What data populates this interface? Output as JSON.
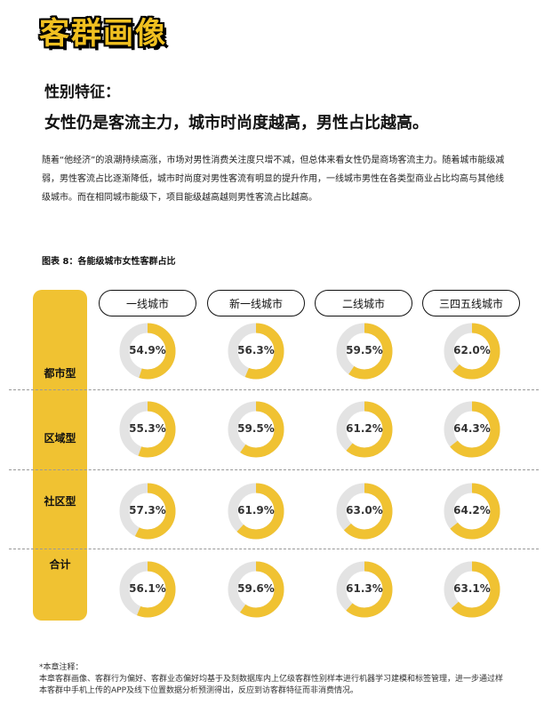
{
  "header": {
    "title": "客群画像"
  },
  "section": {
    "label": "性别特征：",
    "headline": "女性仍是客流主力，城市时尚度越高，男性占比越高。",
    "body": "随着“他经济”的浪潮持续高涨，市场对男性消费关注度只增不减，但总体来看女性仍是商场客流主力。随着城市能级减弱，男性客流占比逐渐降低，城市时尚度对男性客流有明显的提升作用，一线城市男性在各类型商业占比均高与其他线级城市。而在相同城市能级下，项目能级越高越则男性客流占比越高。",
    "figure_caption": "图表 8：各能级城市女性客群占比"
  },
  "colors": {
    "accent": "#f0c232",
    "track": "#e3e3e3"
  },
  "chart_data": {
    "type": "donut-grid",
    "title": "图表 8：各能级城市女性客群占比",
    "columns": [
      "一线城市",
      "新一线城市",
      "二线城市",
      "三四五线城市"
    ],
    "rows": [
      "都市型",
      "区域型",
      "社区型",
      "合计"
    ],
    "values": [
      [
        54.9,
        56.3,
        59.5,
        62.0
      ],
      [
        55.3,
        59.5,
        61.2,
        64.3
      ],
      [
        57.3,
        61.9,
        63.0,
        64.2
      ],
      [
        56.1,
        59.6,
        61.3,
        63.1
      ]
    ],
    "unit": "%"
  },
  "footnote": "*本章注释：\n本章客群画像、客群行为偏好、客群业态偏好均基于及刻数据库内上亿级客群性别样本进行机器学习建模和标签管理，进一步通过样本客群中手机上传的APP及线下位置数据分析预测得出，反应到访客群特征而非消费情况。"
}
